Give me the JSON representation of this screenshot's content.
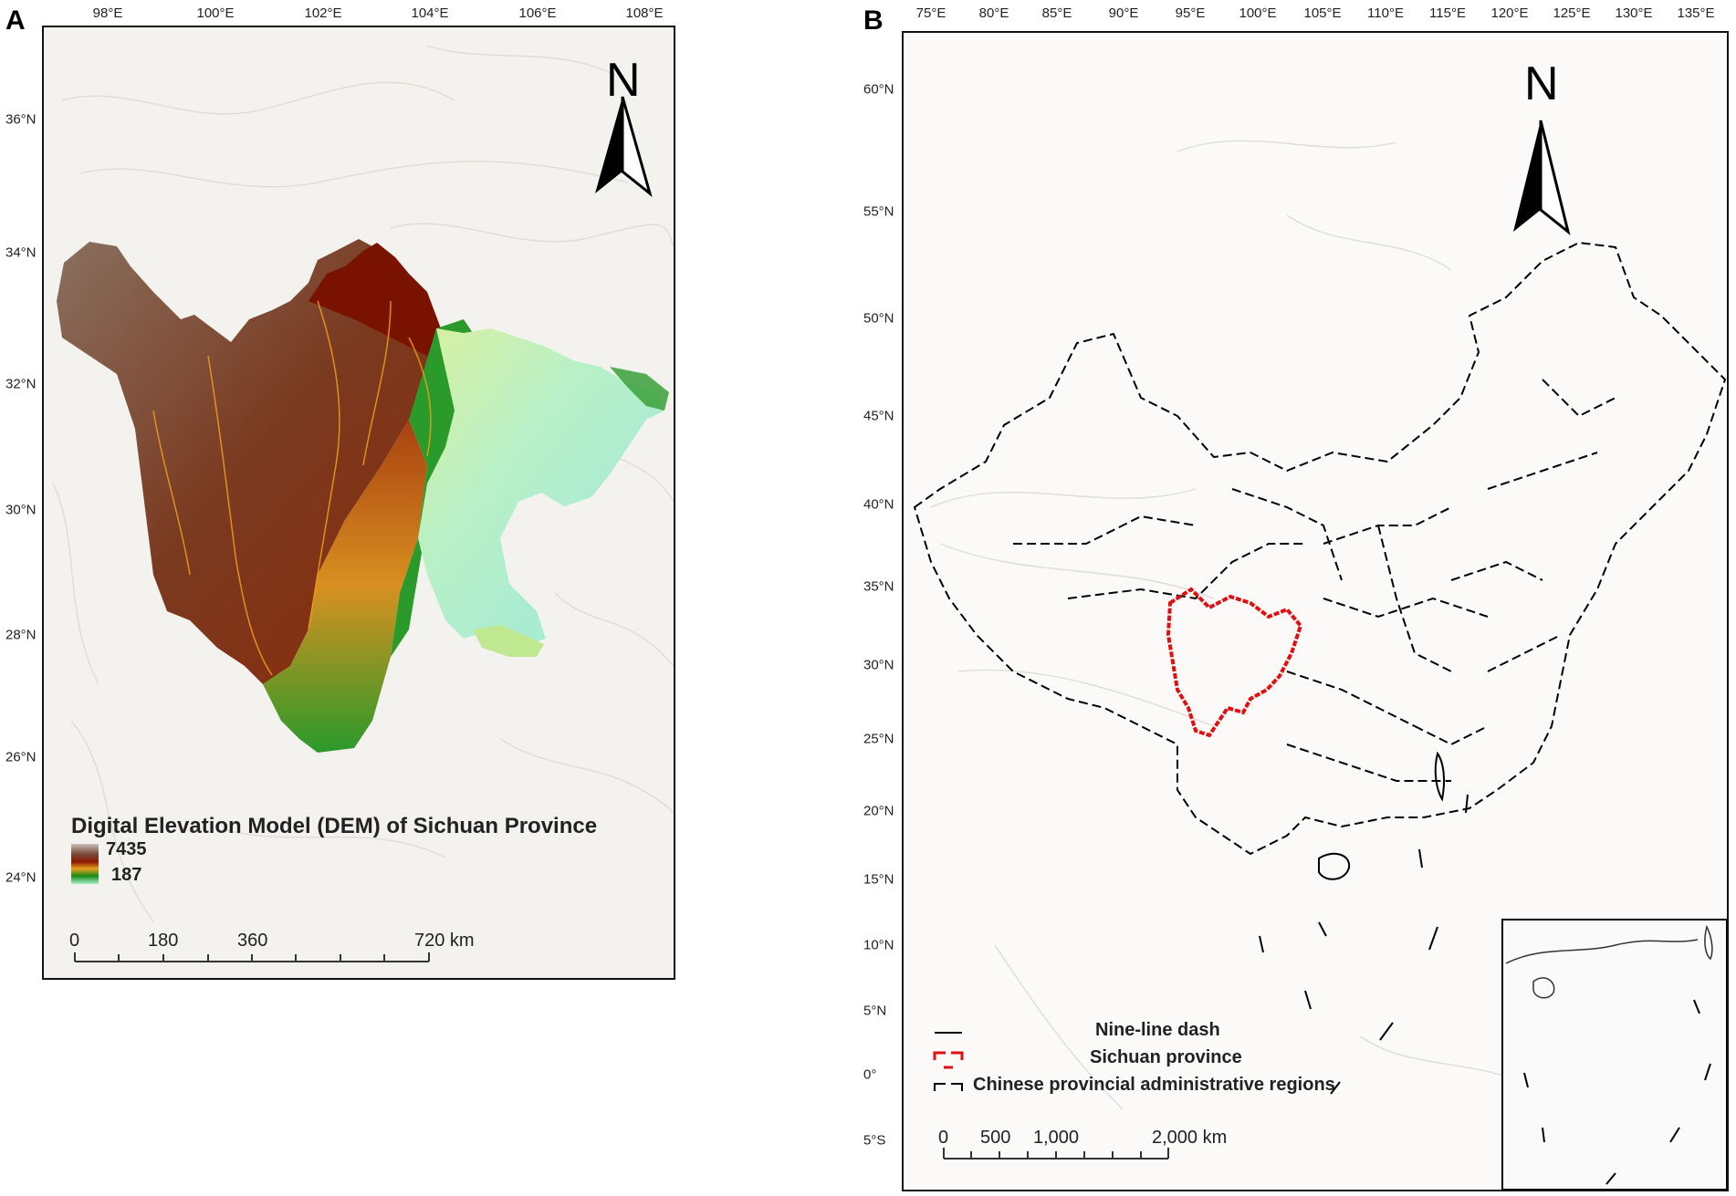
{
  "panel_a": {
    "letter": "A",
    "lon_ticks": [
      "98°E",
      "100°E",
      "102°E",
      "104°E",
      "106°E",
      "108°E"
    ],
    "lat_ticks": [
      "36°N",
      "34°N",
      "32°N",
      "30°N",
      "28°N",
      "26°N",
      "24°N"
    ],
    "north": "N",
    "title": "Digital Elevation Model (DEM) of Sichuan Province",
    "legend_high": "7435",
    "legend_low": "187",
    "legend_gradient": [
      "#7a4a3a",
      "#8b1a00",
      "#e8a020",
      "#1a8a1a",
      "#a8f0c8"
    ],
    "scale_labels": [
      "0",
      "180",
      "360",
      "720 km"
    ],
    "colors": {
      "high_elevation": "#7a1a00",
      "mid_elevation": "#d07020",
      "low_elevation": "#2a9a2a",
      "basin": "#a8ecd0",
      "hillshade": "#f4f2ef"
    }
  },
  "panel_b": {
    "letter": "B",
    "lon_ticks": [
      "75°E",
      "80°E",
      "85°E",
      "90°E",
      "95°E",
      "100°E",
      "105°E",
      "110°E",
      "115°E",
      "120°E",
      "125°E",
      "130°E",
      "135°E"
    ],
    "lat_ticks": [
      "60°N",
      "55°N",
      "50°N",
      "45°N",
      "40°N",
      "35°N",
      "30°N",
      "25°N",
      "20°N",
      "15°N",
      "10°N",
      "5°N",
      "0°",
      "5°S"
    ],
    "north": "N",
    "legend": [
      {
        "label": "Nine-line dash"
      },
      {
        "label": "Sichuan province"
      },
      {
        "label": "Chinese provincial administrative regions"
      }
    ],
    "scale_labels": [
      "0",
      "500",
      "1,000",
      "2,000 km"
    ],
    "colors": {
      "sichuan": "#e01010",
      "boundary": "#000000"
    }
  }
}
